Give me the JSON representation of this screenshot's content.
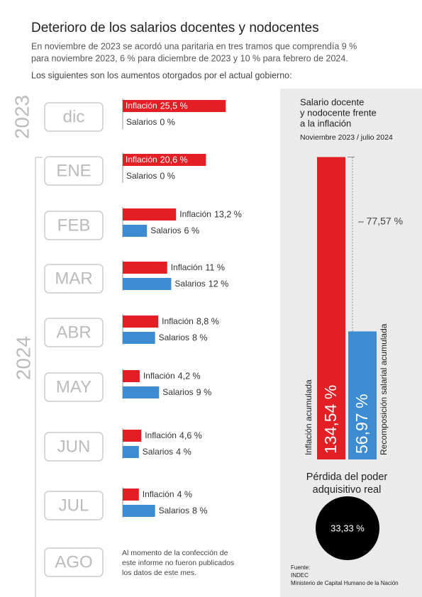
{
  "title": "Deterioro de los salarios docentes y nodocentes",
  "intro": [
    "En noviembre de 2023 se acordó una paritaria en tres tramos que comprendía 9 %",
    "para noviembre 2023, 6 % para diciembre de 2023 y 10 % para febrero de 2024."
  ],
  "subtitle": "Los siguientes son los aumentos otorgados por el actual gobierno:",
  "chart_data": [
    {
      "type": "hbar",
      "groups": [
        "2023",
        "2024"
      ],
      "categories": [
        "dic",
        "ENE",
        "FEB",
        "MAR",
        "ABR",
        "MAY",
        "JUN",
        "JUL",
        "AGO"
      ],
      "series": [
        {
          "name": "Inflación",
          "color": "#e31e24",
          "values": [
            25.5,
            20.6,
            13.2,
            11,
            8.8,
            4.2,
            4.6,
            4,
            null
          ],
          "value_labels": [
            "25,5 %",
            "20,6 %",
            "13,2 %",
            "11 %",
            "8,8 %",
            "4,2 %",
            "4,6 %",
            "4 %",
            null
          ]
        },
        {
          "name": "Salarios",
          "color": "#3d8bd0",
          "values": [
            0,
            0,
            6,
            12,
            8,
            9,
            4,
            8,
            null
          ],
          "value_labels": [
            "0 %",
            "0 %",
            "6 %",
            "12 %",
            "8 %",
            "9 %",
            "4 %",
            "8 %",
            null
          ]
        }
      ],
      "note": [
        "Al momento de la confección de",
        "este informe no fueron publicados",
        "los datos de este mes."
      ]
    },
    {
      "type": "bar",
      "title": [
        "Salario docente",
        "y nodocente frente",
        "a la inflación"
      ],
      "subtitle": "Noviembre 2023 / julio 2024",
      "categories": [
        "Inflación acumulada",
        "Recomposición salarial acumulada"
      ],
      "values": [
        134.54,
        56.97
      ],
      "value_labels": [
        "134,54 %",
        "56,97 %"
      ],
      "colors": [
        "#e31e24",
        "#3d8bd0"
      ],
      "annotation": "– 77,57 %"
    }
  ],
  "loss": {
    "title": [
      "Pérdida del poder",
      "adquisitivo real"
    ],
    "value": 33.33,
    "label": "33,33 %"
  },
  "source": [
    "Fuente:",
    "INDEC",
    "Ministerio de Capital Humano de la Nación"
  ]
}
